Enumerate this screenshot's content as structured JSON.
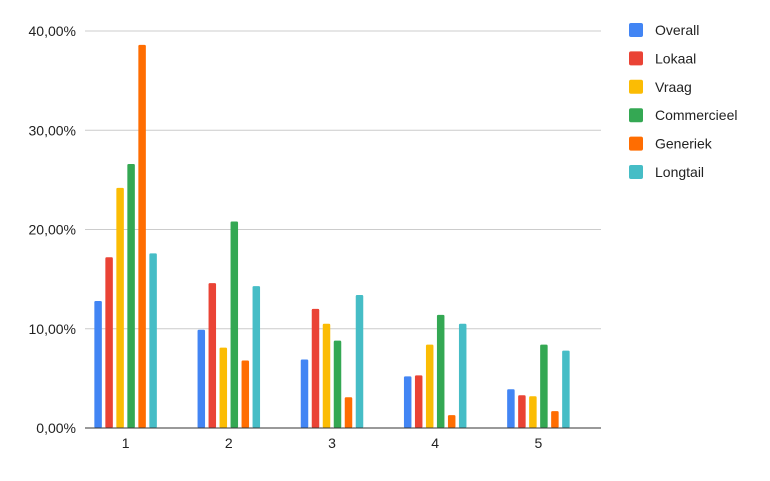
{
  "chart_data": {
    "type": "bar",
    "categories": [
      "1",
      "2",
      "3",
      "4",
      "5"
    ],
    "ylim": [
      0,
      40
    ],
    "yticks": [
      0,
      10,
      20,
      30,
      40
    ],
    "ytick_labels": [
      "0,00%",
      "10,00%",
      "20,00%",
      "30,00%",
      "40,00%"
    ],
    "grid": true,
    "legend_position": "right",
    "title": "",
    "xlabel": "",
    "ylabel": "",
    "series": [
      {
        "name": "Overall",
        "color": "#4285F4",
        "values": [
          12.8,
          9.9,
          6.9,
          5.2,
          3.9
        ]
      },
      {
        "name": "Lokaal",
        "color": "#EA4335",
        "values": [
          17.2,
          14.6,
          12.0,
          5.3,
          3.3
        ]
      },
      {
        "name": "Vraag",
        "color": "#FBBC04",
        "values": [
          24.2,
          8.1,
          10.5,
          8.4,
          3.2
        ]
      },
      {
        "name": "Commercieel",
        "color": "#34A853",
        "values": [
          26.6,
          20.8,
          8.8,
          11.4,
          8.4
        ]
      },
      {
        "name": "Generiek",
        "color": "#FF6D01",
        "values": [
          38.6,
          6.8,
          3.1,
          1.3,
          1.7
        ]
      },
      {
        "name": "Longtail",
        "color": "#46BDC6",
        "values": [
          17.6,
          14.3,
          13.4,
          10.5,
          7.8
        ]
      }
    ]
  }
}
